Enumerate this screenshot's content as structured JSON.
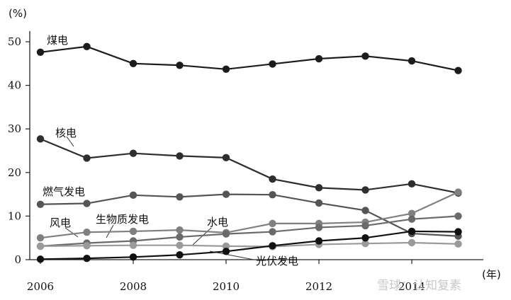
{
  "chart_data": {
    "type": "line",
    "title": "",
    "xlabel": "",
    "ylabel": "",
    "y_unit": "(%)",
    "x_unit": "(年)",
    "x": [
      2006,
      2007,
      2008,
      2009,
      2010,
      2011,
      2012,
      2013,
      2014,
      2015
    ],
    "xticks": [
      "2006",
      "2008",
      "2010",
      "2012",
      "2014"
    ],
    "yticks": [
      "0",
      "10",
      "20",
      "30",
      "40",
      "50"
    ],
    "xlim": [
      2006,
      2016
    ],
    "ylim": [
      0,
      52
    ],
    "grid": false,
    "legend": "inline labels",
    "series": [
      {
        "name": "煤电",
        "color": "#1c1c1c",
        "values": [
          47.6,
          48.9,
          45.0,
          44.6,
          43.7,
          44.9,
          46.1,
          46.7,
          45.6,
          43.4
        ]
      },
      {
        "name": "核电",
        "color": "#2e2e2e",
        "values": [
          27.7,
          23.3,
          24.4,
          23.8,
          23.4,
          18.5,
          16.5,
          16.0,
          17.4,
          15.3
        ]
      },
      {
        "name": "燃气发电",
        "color": "#555555",
        "values": [
          12.7,
          12.9,
          14.8,
          14.4,
          15.0,
          14.9,
          13.0,
          11.3,
          6.0,
          5.4
        ]
      },
      {
        "name": "风电",
        "color": "#808080",
        "values": [
          5.0,
          6.3,
          6.5,
          6.8,
          6.2,
          8.3,
          8.3,
          8.6,
          10.6,
          15.5
        ]
      },
      {
        "name": "生物质发电",
        "color": "#6a6a6a",
        "values": [
          3.1,
          3.8,
          4.3,
          5.2,
          5.9,
          6.4,
          7.4,
          7.8,
          9.3,
          10.0
        ]
      },
      {
        "name": "水电",
        "color": "#9a9a9a",
        "values": [
          3.1,
          3.2,
          3.3,
          3.3,
          3.1,
          3.0,
          3.5,
          3.7,
          3.9,
          3.6
        ]
      },
      {
        "name": "光伏发电",
        "color": "#111111",
        "values": [
          0.1,
          0.3,
          0.6,
          1.1,
          1.9,
          3.2,
          4.3,
          5.0,
          6.5,
          6.4
        ]
      }
    ]
  },
  "watermark": "雪球：认知复素"
}
